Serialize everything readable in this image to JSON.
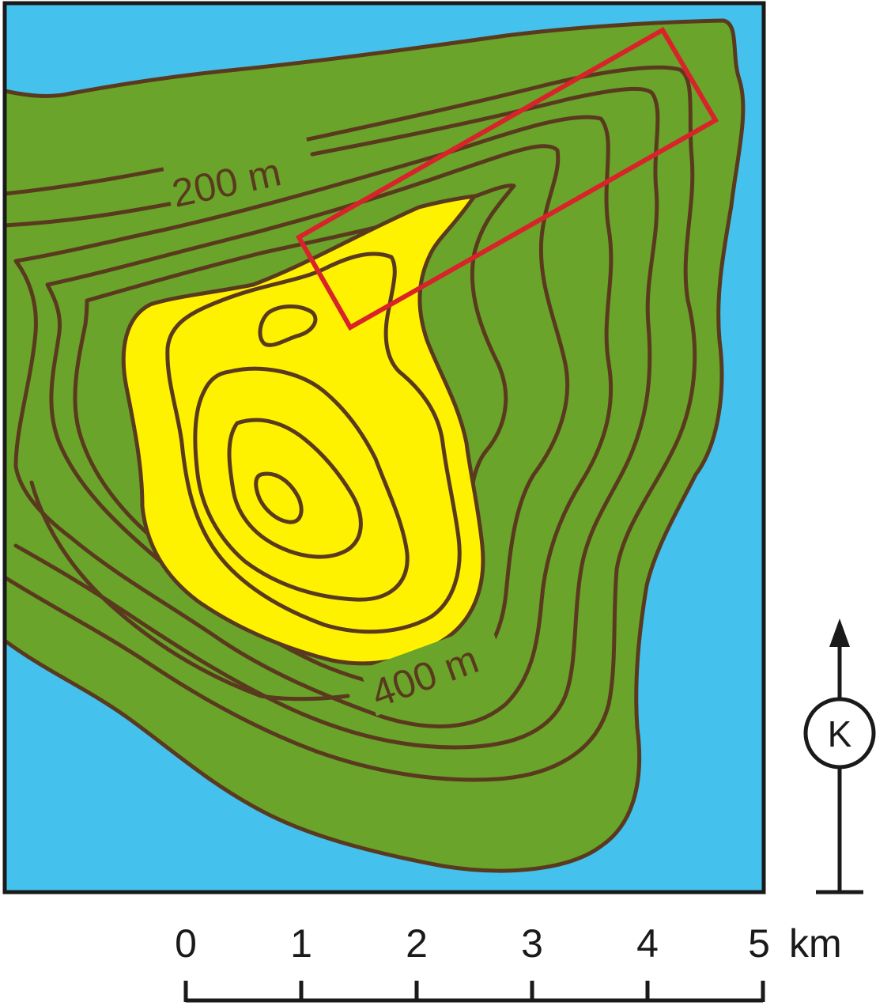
{
  "map": {
    "colors": {
      "sea": "#45c1ee",
      "lowland": "#6aa42a",
      "highland": "#fff200",
      "contour": "#5a3a1e",
      "marker": "#d9232a",
      "frame": "#1a1a1a"
    },
    "contour_labels": {
      "lower": "200 m",
      "upper": "400 m"
    },
    "highlight": "rectangle"
  },
  "compass": {
    "letter": "K",
    "icon": "north-arrow-icon"
  },
  "scale_bar": {
    "ticks": [
      "0",
      "1",
      "2",
      "3",
      "4",
      "5"
    ],
    "unit": "km"
  }
}
